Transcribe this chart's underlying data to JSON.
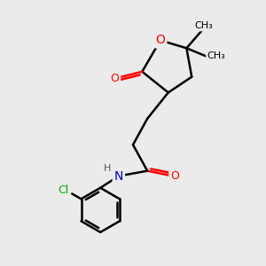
{
  "bg_color": "#ebebeb",
  "atom_colors": {
    "O": "#ff0000",
    "N": "#0000cc",
    "Cl": "#00aa00",
    "C": "#000000",
    "H": "#555555"
  },
  "bond_color": "#000000",
  "bond_width": 1.8,
  "font_size_atom": 9
}
